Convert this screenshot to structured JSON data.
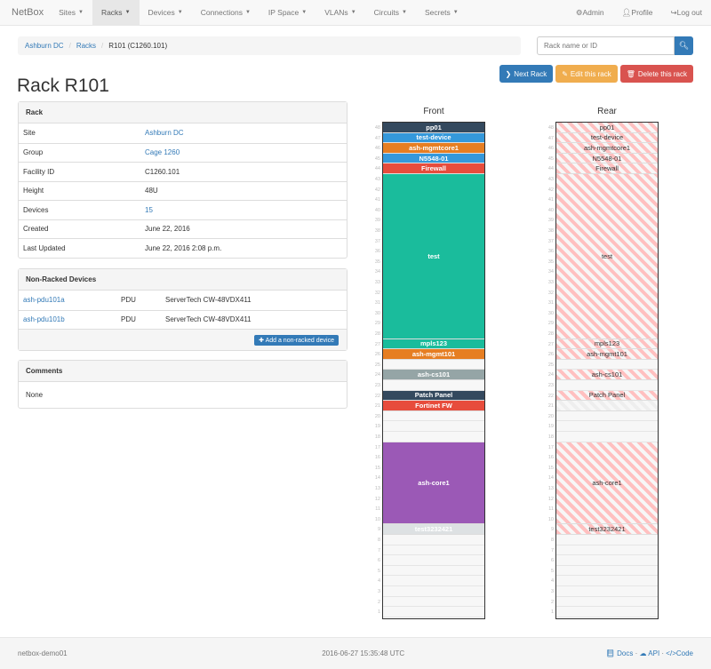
{
  "nav": {
    "brand": "NetBox",
    "items": [
      {
        "label": "Sites"
      },
      {
        "label": "Racks",
        "active": true
      },
      {
        "label": "Devices"
      },
      {
        "label": "Connections"
      },
      {
        "label": "IP Space"
      },
      {
        "label": "VLANs"
      },
      {
        "label": "Circuits"
      },
      {
        "label": "Secrets"
      }
    ],
    "right": [
      {
        "icon": "gear-icon",
        "label": "Admin"
      },
      {
        "icon": "user-icon",
        "label": "Profile"
      },
      {
        "icon": "logout-icon",
        "label": "Log out"
      }
    ]
  },
  "breadcrumb": [
    "Ashburn DC",
    "Racks",
    "R101 (C1260.101)"
  ],
  "search": {
    "placeholder": "Rack name or ID"
  },
  "actions": {
    "next": "Next Rack",
    "edit": "Edit this rack",
    "delete": "Delete this rack"
  },
  "colors": {
    "primary": "#337ab7",
    "warning": "#f0ad4e",
    "danger": "#d9534f"
  },
  "title": "Rack R101",
  "rack_panel": {
    "heading": "Rack",
    "rows": [
      {
        "k": "Site",
        "v": "Ashburn DC",
        "link": true
      },
      {
        "k": "Group",
        "v": "Cage 1260",
        "link": true
      },
      {
        "k": "Facility ID",
        "v": "C1260.101"
      },
      {
        "k": "Height",
        "v": "48U"
      },
      {
        "k": "Devices",
        "v": "15",
        "link": true
      },
      {
        "k": "Created",
        "v": "June 22, 2016"
      },
      {
        "k": "Last Updated",
        "v": "June 22, 2016 2:08 p.m."
      }
    ]
  },
  "nonracked": {
    "heading": "Non-Racked Devices",
    "rows": [
      {
        "name": "ash-pdu101a",
        "type": "PDU",
        "model": "ServerTech CW-48VDX411"
      },
      {
        "name": "ash-pdu101b",
        "type": "PDU",
        "model": "ServerTech CW-48VDX411"
      }
    ],
    "add": "Add a non-racked device"
  },
  "comments": {
    "heading": "Comments",
    "body": "None"
  },
  "elevation": {
    "front_label": "Front",
    "rear_label": "Rear",
    "units": 48,
    "devices": [
      {
        "name": "pp01",
        "top": 48,
        "height": 1,
        "color": "#34495e",
        "rear": true
      },
      {
        "name": "test-device",
        "top": 47,
        "height": 1,
        "color": "#3498db",
        "rear": true
      },
      {
        "name": "ash-mgmtcore1",
        "top": 46,
        "height": 1,
        "color": "#e67e22",
        "rear": true
      },
      {
        "name": "N5548-01",
        "top": 45,
        "height": 1,
        "color": "#3498db",
        "rear": true
      },
      {
        "name": "Firewall",
        "top": 44,
        "height": 1,
        "color": "#e74c3c",
        "rear": true
      },
      {
        "name": "test",
        "top": 43,
        "height": 16,
        "color": "#1abc9c",
        "rear": true
      },
      {
        "name": "mpls123",
        "top": 27,
        "height": 1,
        "color": "#1abc9c",
        "rear": true
      },
      {
        "name": "ash-mgmt101",
        "top": 26,
        "height": 1,
        "color": "#e67e22",
        "rear": true
      },
      {
        "name": "ash-cs101",
        "top": 24,
        "height": 1,
        "color": "#95a5a6",
        "rear": true
      },
      {
        "name": "Patch Panel",
        "top": 22,
        "height": 1,
        "color": "#34495e",
        "rear": true
      },
      {
        "name": "Fortinet FW",
        "top": 21,
        "height": 1,
        "color": "#e74c3c",
        "rear": false
      },
      {
        "name": "ash-core1",
        "top": 17,
        "height": 8,
        "color": "#9b59b6",
        "rear": true
      },
      {
        "name": "test3232421",
        "top": 9,
        "height": 1,
        "color": "#dde1e3",
        "rear": true
      }
    ]
  },
  "footer": {
    "host": "netbox-demo01",
    "time": "2016-06-27 15:35:48 UTC",
    "links": [
      "Docs",
      "API",
      "Code"
    ]
  }
}
